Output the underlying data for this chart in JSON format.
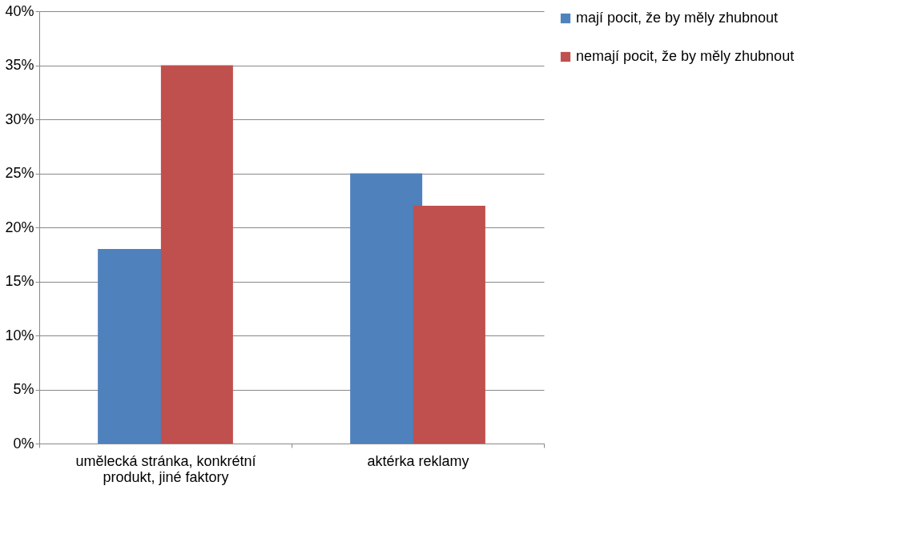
{
  "chart_data": {
    "type": "bar",
    "categories": [
      "umělecká stránka, konkrétní produkt, jiné faktory",
      "aktérka reklamy"
    ],
    "series": [
      {
        "name": "mají pocit, že by měly zhubnout",
        "color": "#4f81bd",
        "values": [
          18,
          25
        ]
      },
      {
        "name": "nemají pocit, že by měly zhubnout",
        "color": "#c0504d",
        "values": [
          35,
          22
        ]
      }
    ],
    "ylim": [
      0,
      40
    ],
    "yticks": [
      {
        "value": 0,
        "label": "0%"
      },
      {
        "value": 5,
        "label": "5%"
      },
      {
        "value": 10,
        "label": "10%"
      },
      {
        "value": 15,
        "label": "15%"
      },
      {
        "value": 20,
        "label": "20%"
      },
      {
        "value": 25,
        "label": "25%"
      },
      {
        "value": 30,
        "label": "30%"
      },
      {
        "value": 35,
        "label": "35%"
      },
      {
        "value": 40,
        "label": "40%"
      }
    ],
    "grid": "y",
    "legend": "right"
  }
}
